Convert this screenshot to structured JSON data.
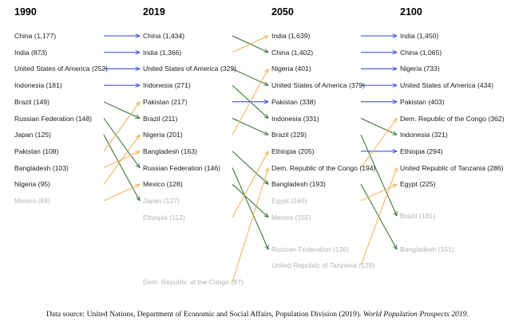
{
  "columns": [
    {
      "year": "1990",
      "items": [
        {
          "name": "China",
          "pop": "1,177",
          "dim": false
        },
        {
          "name": "India",
          "pop": "873",
          "dim": false
        },
        {
          "name": "United States of America",
          "pop": "252",
          "dim": false
        },
        {
          "name": "Indonesia",
          "pop": "181",
          "dim": false
        },
        {
          "name": "Brazil",
          "pop": "149",
          "dim": false
        },
        {
          "name": "Russian Federation",
          "pop": "148",
          "dim": false
        },
        {
          "name": "Japan",
          "pop": "125",
          "dim": false
        },
        {
          "name": "Pakistan",
          "pop": "108",
          "dim": false
        },
        {
          "name": "Bangladesh",
          "pop": "103",
          "dim": false
        },
        {
          "name": "Nigeria",
          "pop": "95",
          "dim": false
        },
        {
          "name": "Mexico",
          "pop": "84",
          "dim": true
        }
      ]
    },
    {
      "year": "2019",
      "items": [
        {
          "name": "China",
          "pop": "1,434",
          "dim": false
        },
        {
          "name": "India",
          "pop": "1,366",
          "dim": false
        },
        {
          "name": "United States of America",
          "pop": "329",
          "dim": false
        },
        {
          "name": "Indonesia",
          "pop": "271",
          "dim": false
        },
        {
          "name": "Pakistan",
          "pop": "217",
          "dim": false
        },
        {
          "name": "Brazil",
          "pop": "211",
          "dim": false
        },
        {
          "name": "Nigeria",
          "pop": "201",
          "dim": false
        },
        {
          "name": "Bangladesh",
          "pop": "163",
          "dim": false
        },
        {
          "name": "Russian Federation",
          "pop": "146",
          "dim": false
        },
        {
          "name": "Mexico",
          "pop": "128",
          "dim": false
        },
        {
          "name": "Japan",
          "pop": "127",
          "dim": true
        },
        {
          "name": "Ethiopia",
          "pop": "112",
          "dim": true
        },
        {
          "name": "Dem. Republic of the Congo",
          "pop": "87",
          "dim": true
        }
      ]
    },
    {
      "year": "2050",
      "items": [
        {
          "name": "India",
          "pop": "1,639",
          "dim": false
        },
        {
          "name": "China",
          "pop": "1,402",
          "dim": false
        },
        {
          "name": "Nigeria",
          "pop": "401",
          "dim": false
        },
        {
          "name": "United States of America",
          "pop": "379",
          "dim": false
        },
        {
          "name": "Pakistan",
          "pop": "338",
          "dim": false
        },
        {
          "name": "Indonesia",
          "pop": "331",
          "dim": false
        },
        {
          "name": "Brazil",
          "pop": "229",
          "dim": false
        },
        {
          "name": "Ethiopia",
          "pop": "205",
          "dim": false
        },
        {
          "name": "Dem. Republic of the Congo",
          "pop": "194",
          "dim": false
        },
        {
          "name": "Bangladesh",
          "pop": "193",
          "dim": false
        },
        {
          "name": "Egypt",
          "pop": "160",
          "dim": true
        },
        {
          "name": "Mexico",
          "pop": "155",
          "dim": true
        },
        {
          "name": "Russian Federation",
          "pop": "136",
          "dim": true
        },
        {
          "name": "United Republic of Tanzania",
          "pop": "129",
          "dim": true
        }
      ]
    },
    {
      "year": "2100",
      "items": [
        {
          "name": "India",
          "pop": "1,450",
          "dim": false
        },
        {
          "name": "China",
          "pop": "1,065",
          "dim": false
        },
        {
          "name": "Nigeria",
          "pop": "733",
          "dim": false
        },
        {
          "name": "United States of America",
          "pop": "434",
          "dim": false
        },
        {
          "name": "Pakistan",
          "pop": "403",
          "dim": false
        },
        {
          "name": "Dem. Republic of the Congo",
          "pop": "362",
          "dim": false
        },
        {
          "name": "Indonesia",
          "pop": "321",
          "dim": false
        },
        {
          "name": "Ethiopia",
          "pop": "294",
          "dim": false
        },
        {
          "name": "United Republic of Tanzania",
          "pop": "286",
          "dim": false
        },
        {
          "name": "Egypt",
          "pop": "225",
          "dim": false
        },
        {
          "name": "Brazil",
          "pop": "181",
          "dim": true
        },
        {
          "name": "Bangladesh",
          "pop": "151",
          "dim": true
        }
      ]
    }
  ],
  "arrow_colors": {
    "same": "#2a3fd6",
    "down": "#2f6b2a",
    "up": "#f0b050"
  },
  "source": {
    "prefix": "Data source: United Nations, Department of Economic and Social Affairs, Population Division (2019). ",
    "title": "World Population Prospects 2019",
    "suffix": "."
  }
}
